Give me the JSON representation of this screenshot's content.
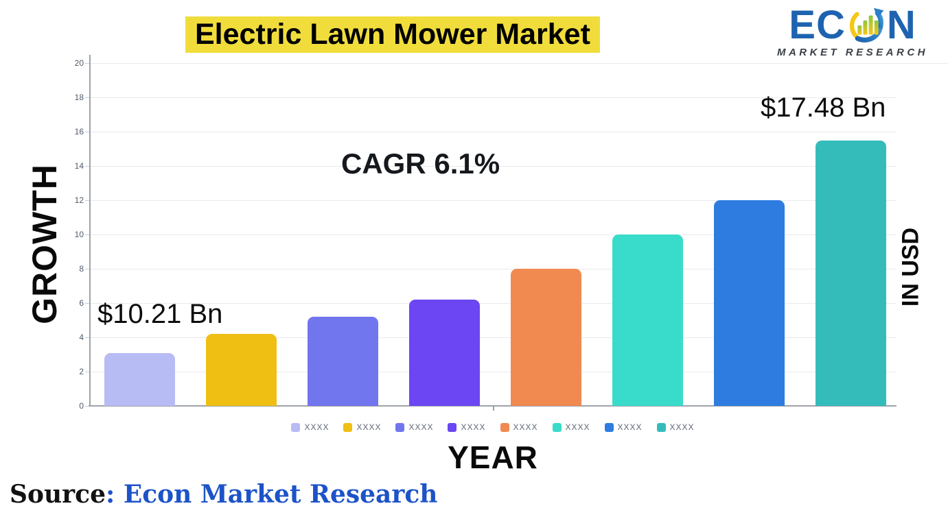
{
  "logo": {
    "prefix": "EC",
    "suffix": "N",
    "subtitle": "MARKET RESEARCH",
    "brand_color": "#1e63b0",
    "subtitle_color": "#3a3f46"
  },
  "axes": {
    "y": "GROWTH",
    "x": "YEAR",
    "right": "IN USD"
  },
  "source": {
    "label": "Source",
    "separator": ": ",
    "name": "Econ Market Research",
    "name_color": "#1d53c8"
  },
  "theme": {
    "title_highlight": "#f0dd3c",
    "grid_color": "#e9eaee",
    "axis_color": "#9da2a8",
    "tick_label_color": "#4d5a6b",
    "legend_text_color": "#5d6775"
  },
  "chart_data": {
    "type": "bar",
    "title": "Electric Lawn Mower Market",
    "categories": [
      "XXXX",
      "XXXX",
      "XXXX",
      "XXXX",
      "XXXX",
      "XXXX",
      "XXXX",
      "XXXX"
    ],
    "values": [
      3.1,
      4.2,
      5.2,
      6.2,
      8,
      10,
      12,
      15.5
    ],
    "bar_colors": [
      "#b8bcf4",
      "#efbf13",
      "#7175ee",
      "#6b46f2",
      "#f08a51",
      "#39dcca",
      "#2e7ce0",
      "#34bcbb"
    ],
    "xlabel": "YEAR",
    "ylabel": "GROWTH",
    "ylabel_right": "IN USD",
    "ylim": [
      0,
      20
    ],
    "ytick_step": 2,
    "yticks": [
      0,
      2,
      4,
      6,
      8,
      10,
      12,
      14,
      16,
      18,
      20
    ],
    "grid": true,
    "legend_position": "bottom",
    "annotations": [
      "CAGR 6.1%",
      "$10.21 Bn",
      "$17.48 Bn"
    ]
  }
}
